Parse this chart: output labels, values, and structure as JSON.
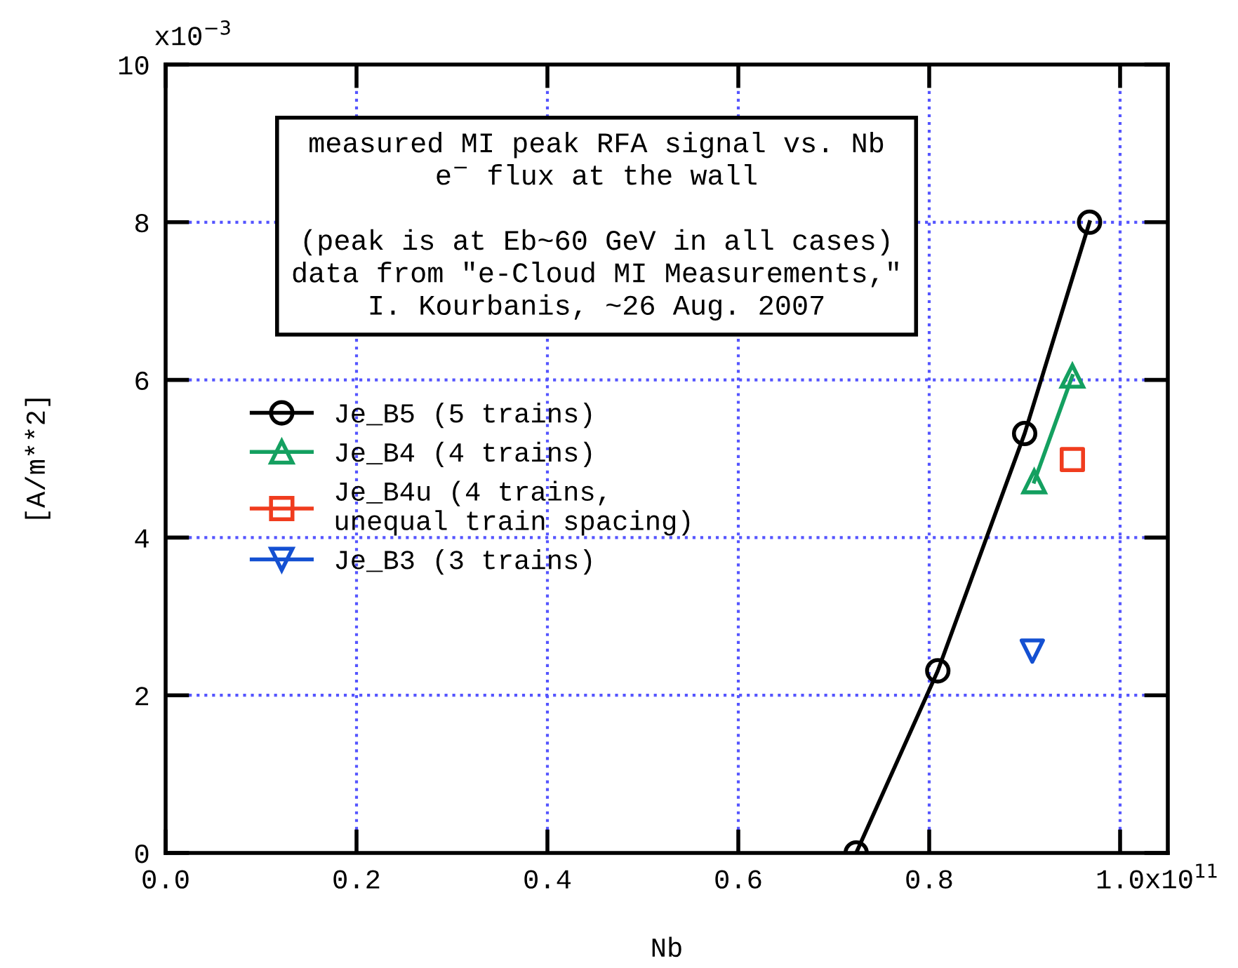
{
  "chart_data": {
    "type": "line",
    "xlabel": "Nb",
    "ylabel": "[A/m**2]",
    "annotations": [
      "measured MI peak RFA signal vs. Nb\ne$^{−}$ flux at the wall\n\n(peak is at Eb~60 GeV in all cases)\ndata from \"e-Cloud MI Measurements,\"\nI. Kourbanis, ~26 Aug. 2007",
      "x10$^{11}$",
      "x10$^{−3}$"
    ],
    "xlim": [
      0,
      1.05
    ],
    "ylim": [
      0,
      10
    ],
    "xticks": [
      {
        "value": 0,
        "label": "0.0"
      },
      0.2,
      0.4,
      0.6,
      0.8,
      {
        "value": 1.0,
        "label": "1.0"
      }
    ],
    "yticks": [
      0,
      2,
      4,
      6,
      8,
      10
    ],
    "grid": true,
    "legend": "left",
    "series": [
      {
        "name": "Je_B5 (5 trains)",
        "color": "#000000",
        "marker": "circle",
        "x": [
          0.7235,
          0.809,
          0.9,
          0.968
        ],
        "values": [
          0,
          2.31,
          5.32,
          8.0
        ]
      },
      {
        "name": "Je_B4 (4 trains)",
        "color": "#14a060",
        "marker": "triangle",
        "x": [
          0.91,
          0.95
        ],
        "values": [
          4.71,
          6.05
        ]
      },
      {
        "name": "Je_B4u (4 trains,\nunequal train spacing)",
        "type": "scatter",
        "color": "#f03c1e",
        "marker": "square",
        "x": [
          0.95
        ],
        "values": [
          4.99
        ]
      },
      {
        "name": "Je_B3 (3 trains)",
        "type": "scatter",
        "color": "#1450d2",
        "marker": "triangle_down",
        "x": [
          0.908
        ],
        "values": [
          2.56
        ]
      }
    ]
  }
}
